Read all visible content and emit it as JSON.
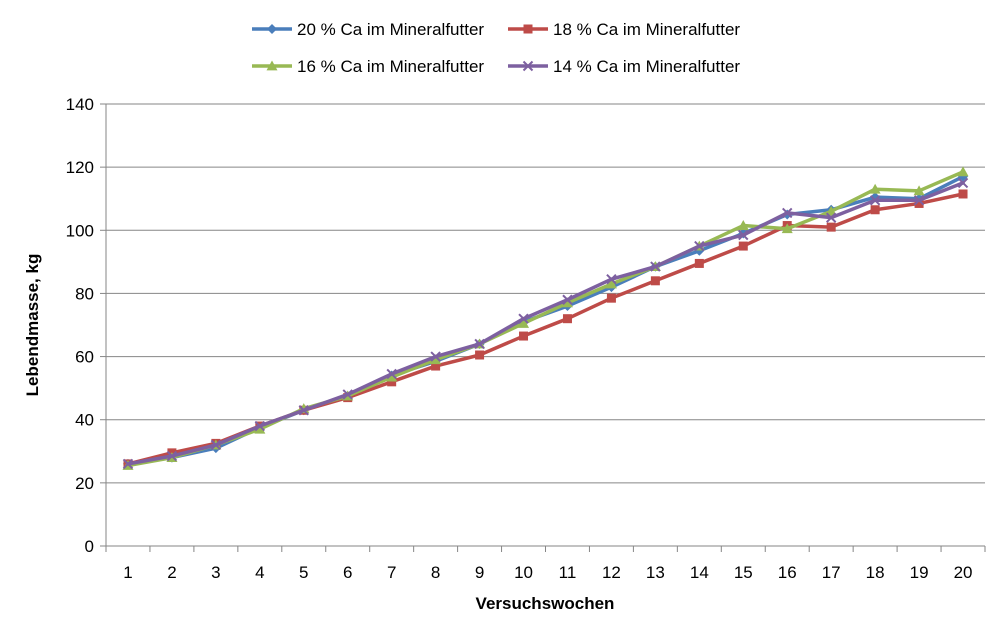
{
  "chart_data": {
    "type": "line",
    "xlabel": "Versuchswochen",
    "ylabel": "Lebendmasse, kg",
    "x": [
      1,
      2,
      3,
      4,
      5,
      6,
      7,
      8,
      9,
      10,
      11,
      12,
      13,
      14,
      15,
      16,
      17,
      18,
      19,
      20
    ],
    "ylim": [
      0,
      140
    ],
    "yticks": [
      0,
      20,
      40,
      60,
      80,
      100,
      120,
      140
    ],
    "grid": "horizontal",
    "legend_position": "top",
    "series": [
      {
        "name": "20 % Ca im Mineralfutter",
        "color": "#4a7ebb",
        "marker": "diamond",
        "values": [
          26,
          28,
          31,
          37.5,
          43,
          47.5,
          54,
          58.5,
          64,
          71,
          76,
          82,
          88.5,
          93.5,
          99,
          105,
          106.5,
          110.5,
          110,
          117
        ]
      },
      {
        "name": "18 % Ca im Mineralfutter",
        "color": "#be4b48",
        "marker": "square",
        "values": [
          26,
          29.5,
          32.5,
          38,
          43,
          47,
          52,
          57,
          60.5,
          66.5,
          72,
          78.5,
          84,
          89.5,
          95,
          101.5,
          101,
          106.5,
          108.5,
          111.5
        ]
      },
      {
        "name": "16 % Ca im Mineralfutter",
        "color": "#98b954",
        "marker": "triangle",
        "values": [
          25.5,
          28,
          32,
          37,
          43.5,
          47.5,
          53.5,
          59,
          64,
          70.5,
          77,
          83,
          88.5,
          95,
          101.5,
          100.5,
          106,
          113,
          112.5,
          118.5
        ]
      },
      {
        "name": "14 % Ca im Mineralfutter",
        "color": "#7d60a0",
        "marker": "x",
        "values": [
          26,
          28.5,
          32,
          38,
          43,
          48,
          54.5,
          60,
          64,
          72,
          78,
          84.5,
          88.5,
          95,
          98.5,
          105.5,
          104,
          109.5,
          109.5,
          115
        ]
      }
    ]
  }
}
